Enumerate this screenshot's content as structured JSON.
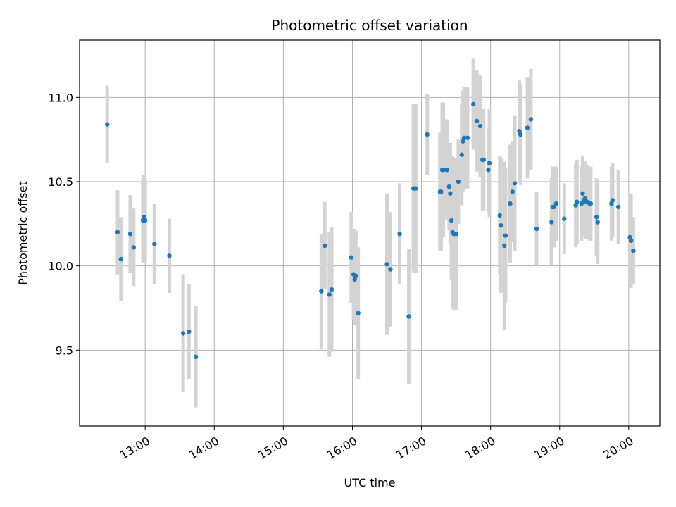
{
  "chart_data": {
    "type": "scatter",
    "title": "Photometric offset variation",
    "xlabel": "UTC time",
    "ylabel": "Photometric offset",
    "x_ticks": [
      "13:00",
      "14:00",
      "15:00",
      "16:00",
      "17:00",
      "18:00",
      "19:00",
      "20:00"
    ],
    "y_ticks": [
      "9.5",
      "10.0",
      "10.5",
      "11.0"
    ],
    "xlim": [
      "12:03",
      "20:27"
    ],
    "ylim": [
      9.05,
      11.34
    ],
    "grid": true,
    "legend": "none",
    "colors": {
      "marker": "#1f77b4",
      "error_bar": "#d3d3d3",
      "grid": "#b0b0b0"
    },
    "series": [
      {
        "x": [
          "12:27",
          "12:36",
          "12:39",
          "12:47",
          "12:50",
          "12:58",
          "12:59",
          "13:00",
          "13:08",
          "13:21",
          "13:33",
          "13:38",
          "13:44",
          "15:33",
          "15:36",
          "15:40",
          "15:42",
          "15:59",
          "16:01",
          "16:02",
          "16:03",
          "16:05",
          "16:30",
          "16:33",
          "16:41",
          "16:49",
          "16:53",
          "16:55",
          "17:05",
          "17:16",
          "17:17",
          "17:18",
          "17:19",
          "17:22",
          "17:24",
          "17:25",
          "17:26",
          "17:27",
          "17:28",
          "17:30",
          "17:32",
          "17:35",
          "17:36",
          "17:37",
          "17:40",
          "17:45",
          "17:48",
          "17:51",
          "17:53",
          "17:54",
          "17:58",
          "17:59",
          "18:08",
          "18:09",
          "18:12",
          "18:13",
          "18:17",
          "18:19",
          "18:21",
          "18:25",
          "18:26",
          "18:32",
          "18:35",
          "18:40",
          "18:53",
          "18:54",
          "18:55",
          "18:57",
          "19:04",
          "19:14",
          "19:15",
          "19:19",
          "19:20",
          "19:21",
          "19:22",
          "19:23",
          "19:24",
          "19:26",
          "19:27",
          "19:32",
          "19:33",
          "19:45",
          "19:46",
          "19:51",
          "20:01",
          "20:02",
          "20:04"
        ],
        "y": [
          10.84,
          10.2,
          10.04,
          10.19,
          10.11,
          10.27,
          10.29,
          10.27,
          10.13,
          10.06,
          9.6,
          9.61,
          9.46,
          9.85,
          10.12,
          9.83,
          9.86,
          10.05,
          9.95,
          9.92,
          9.94,
          9.72,
          10.01,
          9.98,
          10.19,
          9.7,
          10.46,
          10.46,
          10.78,
          10.44,
          10.44,
          10.57,
          10.57,
          10.57,
          10.47,
          10.43,
          10.27,
          10.2,
          10.19,
          10.19,
          10.5,
          10.66,
          10.74,
          10.76,
          10.76,
          10.96,
          10.86,
          10.83,
          10.63,
          10.63,
          10.57,
          10.61,
          10.3,
          10.24,
          10.12,
          10.18,
          10.37,
          10.44,
          10.49,
          10.8,
          10.78,
          10.82,
          10.87,
          10.22,
          10.26,
          10.35,
          10.35,
          10.37,
          10.28,
          10.36,
          10.38,
          10.37,
          10.43,
          10.39,
          10.4,
          10.38,
          10.38,
          10.37,
          10.37,
          10.29,
          10.26,
          10.37,
          10.39,
          10.35,
          10.17,
          10.15,
          10.09
        ],
        "err": [
          0.23,
          0.25,
          0.25,
          0.23,
          0.23,
          0.25,
          0.25,
          0.25,
          0.24,
          0.22,
          0.35,
          0.28,
          0.3,
          0.34,
          0.26,
          0.37,
          0.37,
          0.27,
          0.27,
          0.27,
          0.27,
          0.39,
          0.42,
          0.34,
          0.3,
          0.4,
          0.5,
          0.5,
          0.24,
          0.35,
          0.35,
          0.4,
          0.4,
          0.3,
          0.26,
          0.3,
          0.35,
          0.45,
          0.45,
          0.45,
          0.25,
          0.3,
          0.3,
          0.3,
          0.3,
          0.27,
          0.3,
          0.3,
          0.3,
          0.3,
          0.25,
          0.32,
          0.35,
          0.4,
          0.5,
          0.4,
          0.35,
          0.3,
          0.4,
          0.3,
          0.3,
          0.3,
          0.3,
          0.22,
          0.26,
          0.24,
          0.24,
          0.22,
          0.21,
          0.25,
          0.25,
          0.22,
          0.22,
          0.22,
          0.22,
          0.22,
          0.22,
          0.22,
          0.22,
          0.23,
          0.25,
          0.22,
          0.22,
          0.22,
          0.26,
          0.28,
          0.2
        ]
      }
    ]
  }
}
